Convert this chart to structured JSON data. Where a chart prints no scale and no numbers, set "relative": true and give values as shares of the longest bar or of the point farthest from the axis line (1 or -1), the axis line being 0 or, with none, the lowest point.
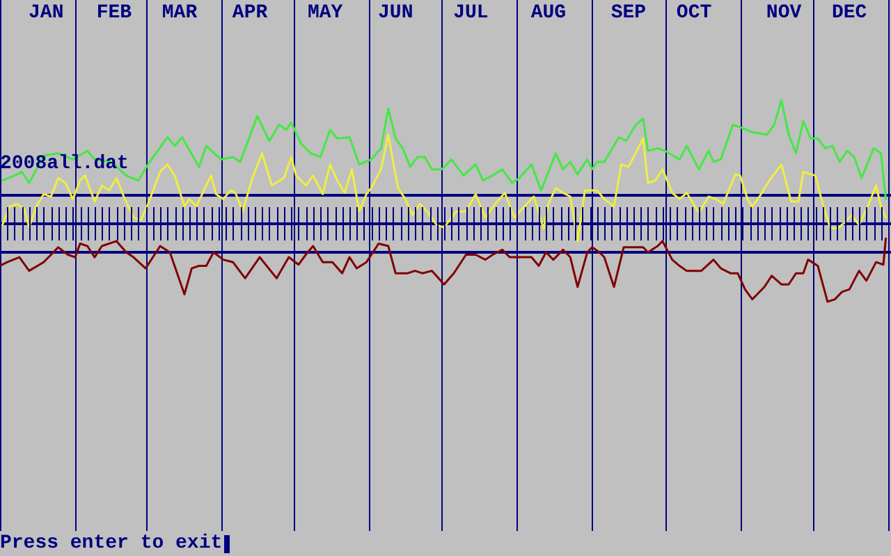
{
  "chart_data": {
    "type": "line",
    "title": "2008all.dat",
    "annotations": [
      "Press enter to exit"
    ],
    "relative": true,
    "legend": false,
    "grid": false,
    "marker": "none",
    "line_style": "solid",
    "xlim": [
      "2008-01-01",
      "2009-01-01"
    ],
    "xticks": [
      {
        "value": "2008-01-20",
        "label": "JAN"
      },
      {
        "value": "2008-02-17",
        "label": "FEB"
      },
      {
        "value": "2008-03-15",
        "label": "MAR"
      },
      {
        "value": "2008-04-13",
        "label": "APR"
      },
      {
        "value": "2008-05-14",
        "label": "MAY"
      },
      {
        "value": "2008-06-12",
        "label": "JUN"
      },
      {
        "value": "2008-07-13",
        "label": "JUL"
      },
      {
        "value": "2008-08-14",
        "label": "AUG"
      },
      {
        "value": "2008-09-16",
        "label": "SEP"
      },
      {
        "value": "2008-10-13",
        "label": "OCT"
      },
      {
        "value": "2008-11-19",
        "label": "NOV"
      },
      {
        "value": "2008-12-16",
        "label": "DEC"
      }
    ],
    "ref_lines": [
      {
        "axis": "x",
        "value": "2008-01-01",
        "color": "#000080"
      },
      {
        "axis": "x",
        "value": "2008-02-01",
        "color": "#000080"
      },
      {
        "axis": "x",
        "value": "2008-03-01",
        "color": "#000080"
      },
      {
        "axis": "x",
        "value": "2008-04-01",
        "color": "#000080"
      },
      {
        "axis": "x",
        "value": "2008-05-01",
        "color": "#000080"
      },
      {
        "axis": "x",
        "value": "2008-06-01",
        "color": "#000080"
      },
      {
        "axis": "x",
        "value": "2008-07-01",
        "color": "#000080"
      },
      {
        "axis": "x",
        "value": "2008-08-01",
        "color": "#000080"
      },
      {
        "axis": "x",
        "value": "2008-09-01",
        "color": "#000080"
      },
      {
        "axis": "x",
        "value": "2008-10-01",
        "color": "#000080"
      },
      {
        "axis": "x",
        "value": "2008-11-01",
        "color": "#000080"
      },
      {
        "axis": "x",
        "value": "2008-12-01",
        "color": "#000080"
      },
      {
        "axis": "x",
        "value": "2009-01-01",
        "color": "#000080"
      },
      {
        "axis": "y",
        "value": 0.23,
        "color": "#000080"
      },
      {
        "axis": "y",
        "value": 0,
        "color": "#000080"
      },
      {
        "axis": "y",
        "value": -0.23,
        "color": "#000080"
      }
    ],
    "series": [
      {
        "color": "#44e844",
        "x": [
          "2008-01-02",
          "2008-01-07",
          "2008-01-10",
          "2008-01-13",
          "2008-01-16",
          "2008-01-19",
          "2008-01-25",
          "2008-01-31",
          "2008-02-06",
          "2008-02-09",
          "2008-02-16",
          "2008-02-22",
          "2008-02-27",
          "2008-03-02",
          "2008-03-10",
          "2008-03-13",
          "2008-03-16",
          "2008-03-23",
          "2008-03-26",
          "2008-04-01",
          "2008-04-06",
          "2008-04-09",
          "2008-04-16",
          "2008-04-21",
          "2008-04-25",
          "2008-04-28",
          "2008-04-30",
          "2008-05-04",
          "2008-05-08",
          "2008-05-12",
          "2008-05-16",
          "2008-05-19",
          "2008-05-24",
          "2008-05-28",
          "2008-06-02",
          "2008-06-06",
          "2008-06-09",
          "2008-06-12",
          "2008-06-15",
          "2008-06-18",
          "2008-06-21",
          "2008-06-24",
          "2008-06-27",
          "2008-07-01",
          "2008-07-05",
          "2008-07-10",
          "2008-07-15",
          "2008-07-18",
          "2008-07-22",
          "2008-07-26",
          "2008-07-30",
          "2008-08-02",
          "2008-08-07",
          "2008-08-11",
          "2008-08-17",
          "2008-08-20",
          "2008-08-23",
          "2008-08-26",
          "2008-08-30",
          "2008-09-01",
          "2008-09-03",
          "2008-09-06",
          "2008-09-12",
          "2008-09-15",
          "2008-09-19",
          "2008-09-22",
          "2008-09-24",
          "2008-09-28",
          "2008-10-01",
          "2008-10-07",
          "2008-10-10",
          "2008-10-15",
          "2008-10-19",
          "2008-10-21",
          "2008-10-24",
          "2008-10-29",
          "2008-11-01",
          "2008-11-06",
          "2008-11-12",
          "2008-11-15",
          "2008-11-18",
          "2008-11-21",
          "2008-11-24",
          "2008-11-27",
          "2008-11-30",
          "2008-12-03",
          "2008-12-06",
          "2008-12-09",
          "2008-12-12",
          "2008-12-15",
          "2008-12-18",
          "2008-12-21",
          "2008-12-26",
          "2008-12-29",
          "2008-12-31"
        ],
        "values": [
          0.35,
          0.39,
          0.42,
          0.33,
          0.44,
          0.55,
          0.57,
          0.52,
          0.59,
          0.52,
          0.5,
          0.39,
          0.35,
          0.48,
          0.7,
          0.63,
          0.7,
          0.46,
          0.63,
          0.52,
          0.54,
          0.5,
          0.87,
          0.67,
          0.8,
          0.76,
          0.82,
          0.65,
          0.57,
          0.54,
          0.76,
          0.69,
          0.7,
          0.48,
          0.52,
          0.61,
          0.93,
          0.69,
          0.61,
          0.46,
          0.54,
          0.54,
          0.44,
          0.44,
          0.52,
          0.39,
          0.48,
          0.35,
          0.39,
          0.44,
          0.33,
          0.37,
          0.48,
          0.27,
          0.57,
          0.44,
          0.5,
          0.4,
          0.52,
          0.44,
          0.5,
          0.5,
          0.7,
          0.67,
          0.8,
          0.85,
          0.59,
          0.61,
          0.59,
          0.52,
          0.63,
          0.44,
          0.59,
          0.5,
          0.52,
          0.8,
          0.78,
          0.74,
          0.72,
          0.8,
          1.0,
          0.72,
          0.57,
          0.83,
          0.69,
          0.69,
          0.61,
          0.63,
          0.5,
          0.59,
          0.54,
          0.37,
          0.61,
          0.57,
          0.2
        ]
      },
      {
        "color": "#eeee44",
        "x": [
          "2008-01-02",
          "2008-01-05",
          "2008-01-08",
          "2008-01-11",
          "2008-01-13",
          "2008-01-16",
          "2008-01-19",
          "2008-01-22",
          "2008-01-25",
          "2008-01-28",
          "2008-01-31",
          "2008-02-03",
          "2008-02-05",
          "2008-02-09",
          "2008-02-12",
          "2008-02-15",
          "2008-02-18",
          "2008-02-21",
          "2008-02-25",
          "2008-02-28",
          "2008-03-02",
          "2008-03-07",
          "2008-03-10",
          "2008-03-13",
          "2008-03-17",
          "2008-03-19",
          "2008-03-22",
          "2008-03-25",
          "2008-03-28",
          "2008-03-30",
          "2008-04-02",
          "2008-04-05",
          "2008-04-07",
          "2008-04-10",
          "2008-04-14",
          "2008-04-18",
          "2008-04-22",
          "2008-04-27",
          "2008-04-30",
          "2008-05-02",
          "2008-05-06",
          "2008-05-09",
          "2008-05-13",
          "2008-05-16",
          "2008-05-19",
          "2008-05-22",
          "2008-05-25",
          "2008-05-28",
          "2008-05-31",
          "2008-06-02",
          "2008-06-06",
          "2008-06-09",
          "2008-06-11",
          "2008-06-13",
          "2008-06-16",
          "2008-06-19",
          "2008-06-22",
          "2008-06-25",
          "2008-06-29",
          "2008-07-02",
          "2008-07-05",
          "2008-07-07",
          "2008-07-11",
          "2008-07-15",
          "2008-07-19",
          "2008-07-23",
          "2008-07-27",
          "2008-07-31",
          "2008-08-04",
          "2008-08-08",
          "2008-08-12",
          "2008-08-14",
          "2008-08-17",
          "2008-08-20",
          "2008-08-23",
          "2008-08-26",
          "2008-08-29",
          "2008-09-01",
          "2008-09-03",
          "2008-09-06",
          "2008-09-10",
          "2008-09-13",
          "2008-09-16",
          "2008-09-22",
          "2008-09-24",
          "2008-09-27",
          "2008-09-30",
          "2008-10-04",
          "2008-10-07",
          "2008-10-10",
          "2008-10-15",
          "2008-10-19",
          "2008-10-22",
          "2008-10-25",
          "2008-10-30",
          "2008-11-01",
          "2008-11-04",
          "2008-11-06",
          "2008-11-09",
          "2008-11-13",
          "2008-11-18",
          "2008-11-22",
          "2008-11-25",
          "2008-11-27",
          "2008-12-02",
          "2008-12-05",
          "2008-12-08",
          "2008-12-11",
          "2008-12-14",
          "2008-12-17",
          "2008-12-20",
          "2008-12-24",
          "2008-12-27",
          "2008-12-29",
          "2008-12-31"
        ],
        "values": [
          -0.01,
          0.14,
          0.16,
          0.12,
          -0.03,
          0.14,
          0.24,
          0.22,
          0.37,
          0.33,
          0.2,
          0.35,
          0.39,
          0.18,
          0.31,
          0.27,
          0.37,
          0.22,
          0.05,
          0.03,
          0.16,
          0.42,
          0.48,
          0.39,
          0.14,
          0.2,
          0.14,
          0.27,
          0.39,
          0.24,
          0.2,
          0.27,
          0.25,
          0.1,
          0.37,
          0.57,
          0.31,
          0.37,
          0.54,
          0.39,
          0.31,
          0.39,
          0.24,
          0.48,
          0.35,
          0.25,
          0.44,
          0.1,
          0.24,
          0.29,
          0.44,
          0.72,
          0.5,
          0.29,
          0.2,
          0.07,
          0.16,
          0.1,
          -0.01,
          -0.03,
          0.05,
          0.1,
          0.1,
          0.24,
          0.05,
          0.16,
          0.25,
          0.05,
          0.14,
          0.22,
          -0.04,
          0.16,
          0.29,
          0.25,
          0.22,
          -0.14,
          0.27,
          0.27,
          0.27,
          0.2,
          0.14,
          0.48,
          0.46,
          0.69,
          0.33,
          0.35,
          0.44,
          0.25,
          0.2,
          0.25,
          0.09,
          0.22,
          0.2,
          0.16,
          0.4,
          0.39,
          0.2,
          0.14,
          0.22,
          0.35,
          0.48,
          0.18,
          0.18,
          0.42,
          0.39,
          0.16,
          -0.03,
          -0.04,
          0.01,
          0.07,
          -0.01,
          0.16,
          0.31,
          0.14,
          0.05
        ]
      },
      {
        "color": "#800000",
        "x": [
          "2008-01-01",
          "2008-01-04",
          "2008-01-09",
          "2008-01-13",
          "2008-01-19",
          "2008-01-25",
          "2008-01-29",
          "2008-02-01",
          "2008-02-03",
          "2008-02-06",
          "2008-02-09",
          "2008-02-12",
          "2008-02-18",
          "2008-02-22",
          "2008-02-25",
          "2008-03-01",
          "2008-03-07",
          "2008-03-11",
          "2008-03-17",
          "2008-03-20",
          "2008-03-23",
          "2008-03-26",
          "2008-03-29",
          "2008-04-02",
          "2008-04-06",
          "2008-04-11",
          "2008-04-17",
          "2008-04-24",
          "2008-04-29",
          "2008-05-03",
          "2008-05-06",
          "2008-05-09",
          "2008-05-13",
          "2008-05-17",
          "2008-05-21",
          "2008-05-24",
          "2008-05-27",
          "2008-05-31",
          "2008-06-05",
          "2008-06-09",
          "2008-06-12",
          "2008-06-17",
          "2008-06-20",
          "2008-06-23",
          "2008-06-27",
          "2008-07-02",
          "2008-07-06",
          "2008-07-11",
          "2008-07-15",
          "2008-07-19",
          "2008-07-22",
          "2008-07-26",
          "2008-07-29",
          "2008-08-02",
          "2008-08-07",
          "2008-08-10",
          "2008-08-13",
          "2008-08-16",
          "2008-08-20",
          "2008-08-23",
          "2008-08-26",
          "2008-08-30",
          "2008-09-01",
          "2008-09-04",
          "2008-09-06",
          "2008-09-10",
          "2008-09-14",
          "2008-09-18",
          "2008-09-22",
          "2008-09-24",
          "2008-09-28",
          "2008-09-30",
          "2008-10-04",
          "2008-10-07",
          "2008-10-10",
          "2008-10-16",
          "2008-10-21",
          "2008-10-24",
          "2008-10-28",
          "2008-10-31",
          "2008-11-03",
          "2008-11-06",
          "2008-11-08",
          "2008-11-11",
          "2008-11-14",
          "2008-11-18",
          "2008-11-21",
          "2008-11-24",
          "2008-11-27",
          "2008-11-29",
          "2008-12-03",
          "2008-12-07",
          "2008-12-10",
          "2008-12-13",
          "2008-12-16",
          "2008-12-20",
          "2008-12-23",
          "2008-12-27",
          "2008-12-30",
          "2008-12-31"
        ],
        "values": [
          -0.34,
          -0.31,
          -0.27,
          -0.38,
          -0.31,
          -0.19,
          -0.25,
          -0.27,
          -0.16,
          -0.18,
          -0.27,
          -0.18,
          -0.14,
          -0.23,
          -0.27,
          -0.36,
          -0.18,
          -0.23,
          -0.57,
          -0.36,
          -0.34,
          -0.34,
          -0.23,
          -0.29,
          -0.31,
          -0.44,
          -0.27,
          -0.44,
          -0.27,
          -0.33,
          -0.25,
          -0.18,
          -0.31,
          -0.31,
          -0.4,
          -0.27,
          -0.36,
          -0.31,
          -0.16,
          -0.18,
          -0.4,
          -0.4,
          -0.38,
          -0.4,
          -0.38,
          -0.49,
          -0.4,
          -0.25,
          -0.25,
          -0.29,
          -0.25,
          -0.21,
          -0.27,
          -0.27,
          -0.27,
          -0.34,
          -0.23,
          -0.29,
          -0.21,
          -0.27,
          -0.51,
          -0.23,
          -0.19,
          -0.23,
          -0.27,
          -0.51,
          -0.19,
          -0.19,
          -0.19,
          -0.23,
          -0.18,
          -0.14,
          -0.29,
          -0.34,
          -0.38,
          -0.38,
          -0.29,
          -0.36,
          -0.4,
          -0.4,
          -0.53,
          -0.61,
          -0.57,
          -0.51,
          -0.42,
          -0.49,
          -0.49,
          -0.4,
          -0.4,
          -0.29,
          -0.34,
          -0.63,
          -0.61,
          -0.55,
          -0.53,
          -0.38,
          -0.46,
          -0.31,
          -0.33,
          -0.12
        ]
      }
    ]
  }
}
